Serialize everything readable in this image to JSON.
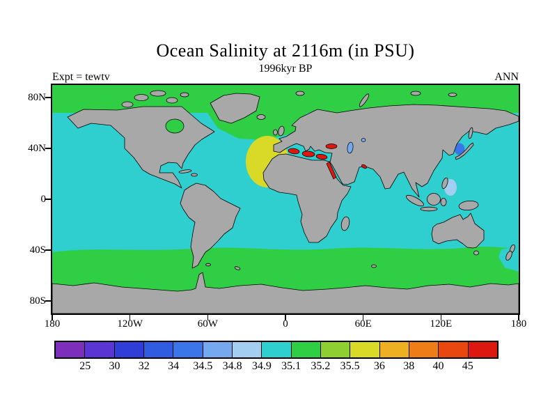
{
  "figure": {
    "title": "Ocean Salinity at 2116m (in PSU)",
    "subtitle": "1996kyr BP",
    "experiment_label": "Expt = tewtv",
    "season_label": "ANN"
  },
  "axes": {
    "lat_ticks": [
      {
        "label": "80N",
        "lat": 80
      },
      {
        "label": "40N",
        "lat": 40
      },
      {
        "label": "0",
        "lat": 0
      },
      {
        "label": "40S",
        "lat": -40
      },
      {
        "label": "80S",
        "lat": -80
      }
    ],
    "lon_ticks": [
      {
        "label": "180",
        "lon": -180
      },
      {
        "label": "120W",
        "lon": -120
      },
      {
        "label": "60W",
        "lon": -60
      },
      {
        "label": "0",
        "lon": 0
      },
      {
        "label": "60E",
        "lon": 60
      },
      {
        "label": "120E",
        "lon": 120
      },
      {
        "label": "180",
        "lon": 180
      }
    ]
  },
  "colorbar": {
    "tick_labels": [
      "25",
      "30",
      "32",
      "34",
      "34.5",
      "34.8",
      "34.9",
      "35.1",
      "35.2",
      "35.5",
      "36",
      "38",
      "40",
      "45"
    ]
  },
  "map_colors": {
    "land": "#a8a8a8",
    "coastline": "#000000",
    "frame": "#000000",
    "background": "#ffffff"
  },
  "chart_data": {
    "type": "heatmap",
    "title": "Ocean Salinity at 2116m (in PSU)",
    "subtitle": "1996kyr BP",
    "experiment": "tewtv",
    "season": "ANN",
    "variable": "Ocean Salinity",
    "depth_m": 2116,
    "units": "PSU",
    "projection": "global latitude-longitude map",
    "x_axis": {
      "tick_labels": [
        "180",
        "120W",
        "60W",
        "0",
        "60E",
        "120E",
        "180"
      ],
      "range_deg_lon": [
        -180,
        180
      ]
    },
    "y_axis": {
      "tick_labels": [
        "80N",
        "40N",
        "0",
        "40S",
        "80S"
      ],
      "range_deg_lat": [
        -90,
        90
      ]
    },
    "contour_levels": [
      25,
      30,
      32,
      34,
      34.5,
      34.8,
      34.9,
      35.1,
      35.2,
      35.5,
      36,
      38,
      40,
      45
    ],
    "palette": [
      "#7d2ebd",
      "#5a35d4",
      "#2f3ed8",
      "#2f5ce0",
      "#3b76e8",
      "#74a9ef",
      "#a4cdf2",
      "#2fcfcf",
      "#2fce44",
      "#8ed032",
      "#d9d928",
      "#eeb022",
      "#ee7d18",
      "#e8480f",
      "#dc1810"
    ],
    "legend_position": "bottom horizontal colorbar, open-ended bins at both ends",
    "regions": [
      {
        "area": "most of the global deep ocean",
        "salinity_psu": "34.9-35.1",
        "color": "#2fcfcf"
      },
      {
        "area": "Southern Ocean belt (~40S to Antarctic coast)",
        "salinity_psu": "35.1-35.2",
        "color": "#2fce44"
      },
      {
        "area": "Arctic Ocean and high-latitude North Atlantic",
        "salinity_psu": "35.1-35.2",
        "color": "#2fce44"
      },
      {
        "area": "subtropical eastern North Atlantic off NW Africa",
        "salinity_psu": "35.5-36",
        "color": "#d9d928"
      },
      {
        "area": "Mediterranean Sea, Black Sea, Red Sea, Persian Gulf",
        "salinity_psu": "> 45",
        "color": "#dc1810"
      },
      {
        "area": "Sea of Japan",
        "salinity_psu": "34-34.5",
        "color": "#3b76e8"
      },
      {
        "area": "western equatorial Pacific patch near Philippines",
        "salinity_psu": "34.8-34.9",
        "color": "#a4cdf2"
      },
      {
        "area": "Caspian / Aral region",
        "salinity_psu": "34.5-34.8",
        "color": "#74a9ef"
      },
      {
        "area": "land",
        "salinity_psu": "no data",
        "color": "#a8a8a8"
      }
    ]
  }
}
